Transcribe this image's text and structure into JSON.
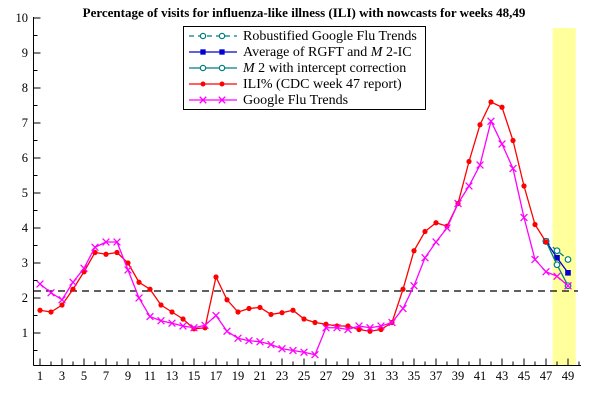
{
  "title": "Percentage of visits for influenza-like illness (ILI) with nowcasts for weeks 48,49",
  "legend": {
    "items": [
      {
        "pre": "Robustified Google Flu Trends",
        "em": "",
        "post": ""
      },
      {
        "pre": "Average of RGFT and ",
        "em": "M",
        "post": " 2-IC"
      },
      {
        "pre": "",
        "em": "M",
        "post": " 2 with intercept correction"
      },
      {
        "pre": "ILI% (CDC week 47 report)",
        "em": "",
        "post": ""
      },
      {
        "pre": "Google Flu Trends",
        "em": "",
        "post": ""
      }
    ]
  },
  "colors": {
    "teal": "#007F7F",
    "blue": "#0000D2",
    "red": "#FF0000",
    "magenta": "#FF00FF",
    "highlight_band": "#FFFF9C",
    "axis": "#000000",
    "threshold": "#000000"
  },
  "chart_data": {
    "type": "line",
    "title": "Percentage of visits for influenza-like illness (ILI) with nowcasts for weeks 48,49",
    "xlabel": "",
    "ylabel": "",
    "xlim": [
      0.4,
      50.3
    ],
    "ylim": [
      0.1,
      10
    ],
    "grid": false,
    "legend_position": "top-center",
    "x_ticks": [
      1,
      3,
      5,
      7,
      9,
      11,
      13,
      15,
      17,
      19,
      21,
      23,
      25,
      27,
      29,
      31,
      33,
      35,
      37,
      39,
      41,
      43,
      45,
      47,
      49
    ],
    "x_minor_ticks": [
      2,
      4,
      6,
      8,
      10,
      12,
      14,
      16,
      18,
      20,
      22,
      24,
      26,
      28,
      30,
      32,
      34,
      36,
      38,
      40,
      42,
      44,
      46,
      48,
      50
    ],
    "y_ticks": [
      1,
      2,
      3,
      4,
      5,
      6,
      7,
      8,
      9,
      10
    ],
    "y_minor_ticks": [
      0.5,
      1.5,
      2.5,
      3.5,
      4.5,
      5.5,
      6.5,
      7.5,
      8.5,
      9.5
    ],
    "threshold_line": {
      "value": 2.2,
      "style": "dashed",
      "color": "#000000"
    },
    "highlight_band": {
      "x_start": 47.6,
      "x_end": 49.7,
      "color": "#FFFF9C",
      "meaning": "nowcast weeks 48,49"
    },
    "series": [
      {
        "name": "Robustified Google Flu Trends",
        "color": "#007F7F",
        "dash": "5,4",
        "marker": "circle-open",
        "x": [
          47,
          48,
          49
        ],
        "y": [
          3.62,
          3.35,
          3.1
        ]
      },
      {
        "name": "Average of RGFT and M 2-IC",
        "color": "#0000D2",
        "dash": "",
        "marker": "square",
        "x": [
          47,
          48,
          49
        ],
        "y": [
          3.62,
          3.15,
          2.72
        ]
      },
      {
        "name": "M 2 with intercept correction",
        "color": "#007F7F",
        "dash": "",
        "marker": "circle-open",
        "x": [
          47,
          48,
          49
        ],
        "y": [
          3.62,
          2.95,
          2.35
        ]
      },
      {
        "name": "ILI% (CDC week 47 report)",
        "color": "#FF0000",
        "dash": "",
        "marker": "dot",
        "x": [
          1,
          2,
          3,
          4,
          5,
          6,
          7,
          8,
          9,
          10,
          11,
          12,
          13,
          14,
          15,
          16,
          17,
          18,
          19,
          20,
          21,
          22,
          23,
          24,
          25,
          26,
          27,
          28,
          29,
          30,
          31,
          32,
          33,
          34,
          35,
          36,
          37,
          38,
          39,
          40,
          41,
          42,
          43,
          44,
          45,
          46,
          47
        ],
        "y": [
          1.65,
          1.6,
          1.8,
          2.25,
          2.75,
          3.3,
          3.25,
          3.3,
          3.0,
          2.45,
          2.25,
          1.8,
          1.6,
          1.4,
          1.12,
          1.15,
          2.6,
          1.95,
          1.6,
          1.7,
          1.73,
          1.53,
          1.58,
          1.65,
          1.4,
          1.3,
          1.25,
          1.2,
          1.2,
          1.1,
          1.05,
          1.1,
          1.3,
          2.25,
          3.35,
          3.9,
          4.15,
          4.05,
          4.7,
          5.9,
          6.95,
          7.6,
          7.45,
          6.5,
          5.2,
          4.1,
          3.6
        ]
      },
      {
        "name": "Google Flu Trends",
        "color": "#FF00FF",
        "dash": "",
        "marker": "x",
        "x": [
          1,
          2,
          3,
          4,
          5,
          6,
          7,
          8,
          9,
          10,
          11,
          12,
          13,
          14,
          15,
          16,
          17,
          18,
          19,
          20,
          21,
          22,
          23,
          24,
          25,
          26,
          27,
          28,
          29,
          30,
          31,
          32,
          33,
          34,
          35,
          36,
          37,
          38,
          39,
          40,
          41,
          42,
          43,
          44,
          45,
          46,
          47,
          48,
          49
        ],
        "y": [
          2.4,
          2.15,
          1.95,
          2.45,
          2.85,
          3.45,
          3.6,
          3.6,
          2.8,
          2.0,
          1.47,
          1.35,
          1.28,
          1.2,
          1.15,
          1.22,
          1.5,
          1.05,
          0.85,
          0.78,
          0.75,
          0.67,
          0.55,
          0.5,
          0.45,
          0.38,
          1.15,
          1.15,
          1.1,
          1.2,
          1.15,
          1.2,
          1.3,
          1.7,
          2.35,
          3.15,
          3.6,
          4.0,
          4.7,
          5.2,
          5.8,
          7.05,
          6.4,
          5.7,
          4.3,
          3.1,
          2.75,
          2.62,
          2.35
        ]
      }
    ]
  }
}
